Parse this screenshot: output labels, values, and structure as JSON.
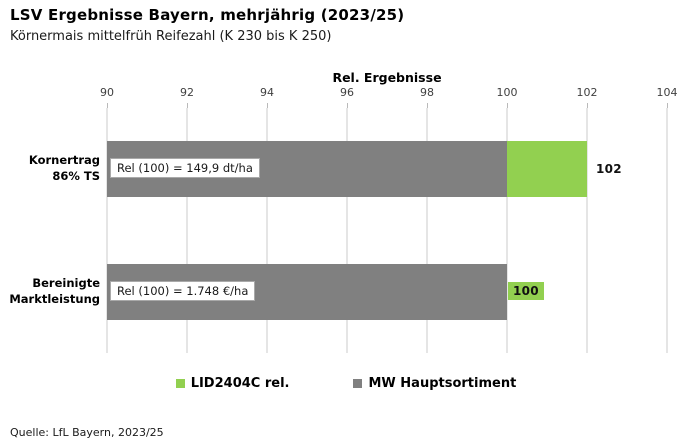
{
  "page": {
    "title": "LSV Ergebnisse Bayern, mehrjährig (2023/25)",
    "subtitle": "Körnermais mittelfrüh Reifezahl (K 230 bis K 250)",
    "source": "Quelle: LfL Bayern, 2023/25"
  },
  "colors": {
    "green": "#92D050",
    "gray": "#808080",
    "gridline": "#e5e5e5",
    "annotation_border": "#a9a9a9"
  },
  "chart_data": {
    "type": "bar",
    "orientation": "horizontal",
    "axis_title": "Rel. Ergebnisse",
    "axis": {
      "min": 90,
      "max": 104,
      "ticks": [
        90,
        92,
        94,
        96,
        98,
        100,
        102,
        104
      ]
    },
    "categories": [
      "Kornertrag\n86% TS",
      "Bereinigte\nMarktleistung"
    ],
    "series": [
      {
        "name": "LID2404C rel.",
        "color": "#92D050",
        "values": [
          102,
          100
        ]
      },
      {
        "name": "MW Hauptsortiment",
        "color": "#808080",
        "values": [
          100,
          100
        ]
      }
    ],
    "annotations": [
      "Rel (100) = 149,9 dt/ha",
      "Rel (100) = 1.748 €/ha"
    ],
    "data_labels": [
      "102",
      "100"
    ],
    "grid": true,
    "legend_position": "bottom",
    "legend_items": [
      {
        "label": "LID2404C rel.",
        "color": "#92D050"
      },
      {
        "label": "MW Hauptsortiment",
        "color": "#808080"
      }
    ]
  }
}
